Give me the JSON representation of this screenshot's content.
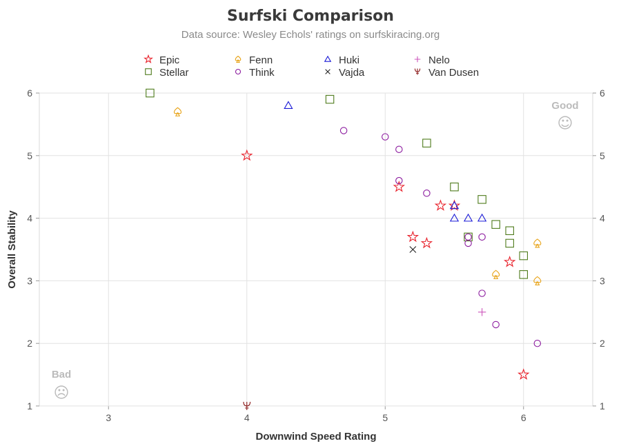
{
  "chart_data": {
    "type": "scatter",
    "title": "Surfski Comparison",
    "subtitle": "Data source: Wesley Echols' ratings on surfskiracing.org",
    "xlabel": "Downwind Speed Rating",
    "ylabel": "Overall Stability",
    "xlim": [
      2.5,
      6.5
    ],
    "ylim": [
      1,
      6
    ],
    "x_ticks": [
      3,
      4,
      5,
      6
    ],
    "y_ticks": [
      1,
      2,
      3,
      4,
      5,
      6
    ],
    "grid": true,
    "legend_position": "top",
    "annotations": [
      {
        "id": "good",
        "text": "Good",
        "face": "☺"
      },
      {
        "id": "bad",
        "text": "Bad",
        "face": "☹"
      }
    ],
    "series": [
      {
        "name": "Epic",
        "marker": "star",
        "color": "#e8202a",
        "points": [
          [
            4.0,
            5.0
          ],
          [
            5.1,
            4.5
          ],
          [
            5.2,
            3.7
          ],
          [
            5.3,
            3.6
          ],
          [
            5.4,
            4.2
          ],
          [
            5.5,
            4.2
          ],
          [
            5.9,
            3.3
          ],
          [
            6.0,
            1.5
          ]
        ]
      },
      {
        "name": "Fenn",
        "marker": "spade",
        "color": "#e8a317",
        "points": [
          [
            3.5,
            5.7
          ],
          [
            5.8,
            3.1
          ],
          [
            6.1,
            3.6
          ],
          [
            6.1,
            3.0
          ]
        ]
      },
      {
        "name": "Huki",
        "marker": "triangle",
        "color": "#1a1ad6",
        "points": [
          [
            4.3,
            5.8
          ],
          [
            5.5,
            4.2
          ],
          [
            5.5,
            4.0
          ],
          [
            5.6,
            4.0
          ],
          [
            5.7,
            4.0
          ]
        ]
      },
      {
        "name": "Nelo",
        "marker": "plus",
        "color": "#cc55bb",
        "points": [
          [
            5.7,
            2.5
          ]
        ]
      },
      {
        "name": "Stellar",
        "marker": "square",
        "color": "#4d7a1a",
        "points": [
          [
            3.3,
            6.0
          ],
          [
            4.6,
            5.9
          ],
          [
            5.3,
            5.2
          ],
          [
            5.5,
            4.5
          ],
          [
            5.7,
            4.3
          ],
          [
            5.8,
            3.9
          ],
          [
            5.9,
            3.8
          ],
          [
            5.9,
            3.6
          ],
          [
            5.6,
            3.7
          ],
          [
            6.0,
            3.4
          ],
          [
            6.0,
            3.1
          ]
        ]
      },
      {
        "name": "Think",
        "marker": "circle",
        "color": "#8b1a9e",
        "points": [
          [
            4.7,
            5.4
          ],
          [
            5.0,
            5.3
          ],
          [
            5.1,
            5.1
          ],
          [
            5.1,
            4.6
          ],
          [
            5.3,
            4.4
          ],
          [
            5.6,
            3.7
          ],
          [
            5.6,
            3.6
          ],
          [
            5.7,
            3.7
          ],
          [
            5.7,
            2.8
          ],
          [
            5.8,
            2.3
          ],
          [
            6.1,
            2.0
          ]
        ]
      },
      {
        "name": "Vajda",
        "marker": "x",
        "color": "#222222",
        "points": [
          [
            5.2,
            3.5
          ]
        ]
      },
      {
        "name": "Van Dusen",
        "marker": "trident",
        "color": "#8b1a1a",
        "points": [
          [
            4.0,
            1.0
          ]
        ]
      }
    ]
  }
}
